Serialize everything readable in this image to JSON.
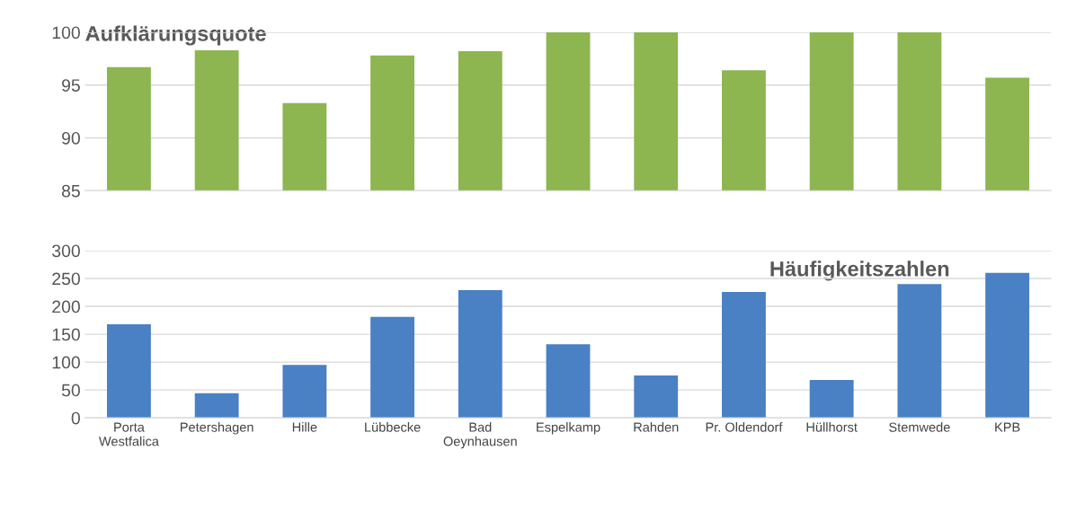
{
  "chart_data": [
    {
      "type": "bar",
      "title": "Aufklärungsquote",
      "categories": [
        null,
        null,
        null,
        null,
        null,
        null,
        null,
        null,
        null,
        null,
        null
      ],
      "values": [
        96.7,
        98.3,
        93.3,
        97.8,
        98.2,
        100,
        100,
        96.4,
        100,
        100,
        95.7
      ],
      "color": "#8db550",
      "ylim": [
        85,
        100
      ],
      "yticks": [
        85,
        90,
        95,
        100
      ],
      "grid": "y",
      "tick_labels": "y"
    },
    {
      "type": "bar",
      "title": "Häufigkeitszahlen",
      "categories": [
        "Porta\nWestfalica",
        "Petershagen",
        "Hille",
        "Lübbecke",
        "Bad\nOeynhausen",
        "Espelkamp",
        "Rahden",
        "Pr. Oldendorf",
        "Hüllhorst",
        "Stemwede",
        "KPB"
      ],
      "values": [
        168,
        44,
        95,
        181,
        229,
        132,
        76,
        226,
        68,
        240,
        260
      ],
      "color": "#4a80c4",
      "ylim": [
        0,
        300
      ],
      "yticks": [
        0,
        50,
        100,
        150,
        200,
        250,
        300
      ],
      "grid": "y"
    }
  ]
}
